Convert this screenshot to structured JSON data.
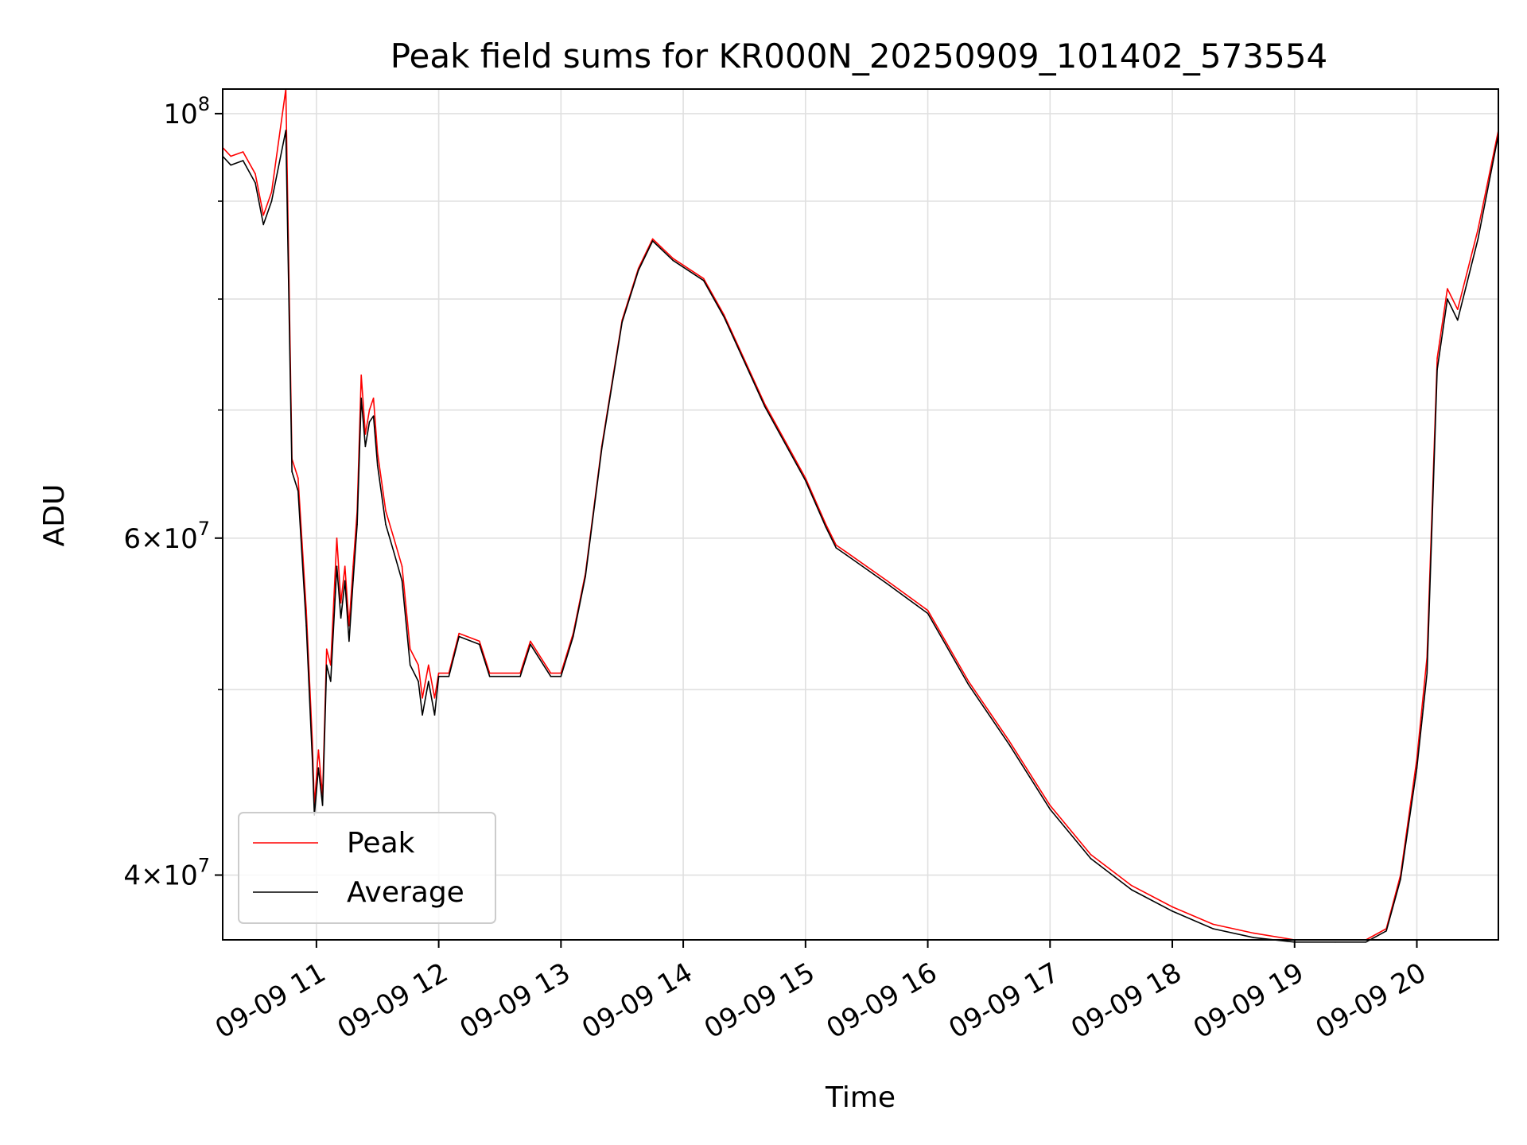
{
  "chart_data": {
    "type": "line",
    "title": "Peak field sums for KR000N_20250909_101402_573554",
    "xlabel": "Time",
    "ylabel": "ADU",
    "x_axis": "time (hours of 2025-09-09, local clock)",
    "xlim": [
      "09-09 10:14",
      "09-09 20:40"
    ],
    "ylim": [
      37000000,
      103000000
    ],
    "yscale": "log",
    "grid": true,
    "legend_position": "lower-left",
    "x_ticks": [
      {
        "value": "09-09 11:00",
        "label": "09-09 11"
      },
      {
        "value": "09-09 12:00",
        "label": "09-09 12"
      },
      {
        "value": "09-09 13:00",
        "label": "09-09 13"
      },
      {
        "value": "09-09 14:00",
        "label": "09-09 14"
      },
      {
        "value": "09-09 15:00",
        "label": "09-09 15"
      },
      {
        "value": "09-09 16:00",
        "label": "09-09 16"
      },
      {
        "value": "09-09 17:00",
        "label": "09-09 17"
      },
      {
        "value": "09-09 18:00",
        "label": "09-09 18"
      },
      {
        "value": "09-09 19:00",
        "label": "09-09 19"
      },
      {
        "value": "09-09 20:00",
        "label": "09-09 20"
      }
    ],
    "y_ticks": [
      {
        "value": 40000000,
        "mantissa": "4",
        "exponent": "7"
      },
      {
        "value": 60000000,
        "mantissa": "6",
        "exponent": "7"
      },
      {
        "value": 100000000,
        "mantissa": "",
        "exponent": "8"
      }
    ],
    "y_minor_ticks": [
      50000000,
      70000000,
      80000000,
      90000000
    ],
    "series": [
      {
        "name": "Peak",
        "color": "#ff0000",
        "x": [
          "10:14",
          "10:18",
          "10:24",
          "10:30",
          "10:34",
          "10:38",
          "10:45",
          "10:48",
          "10:51",
          "10:55",
          "10:58",
          "10:59",
          "11:01",
          "11:03",
          "11:05",
          "11:07",
          "11:10",
          "11:12",
          "11:14",
          "11:16",
          "11:18",
          "11:20",
          "11:22",
          "11:24",
          "11:26",
          "11:28",
          "11:30",
          "11:34",
          "11:38",
          "11:42",
          "11:46",
          "11:50",
          "11:52",
          "11:55",
          "11:58",
          "12:00",
          "12:05",
          "12:10",
          "12:20",
          "12:25",
          "12:40",
          "12:45",
          "12:55",
          "13:00",
          "13:06",
          "13:12",
          "13:20",
          "13:30",
          "13:38",
          "13:45",
          "13:55",
          "14:10",
          "14:20",
          "14:40",
          "15:00",
          "15:10",
          "15:15",
          "15:20",
          "15:40",
          "16:00",
          "16:20",
          "16:40",
          "17:00",
          "17:20",
          "17:40",
          "18:00",
          "18:20",
          "18:40",
          "19:00",
          "19:20",
          "19:35",
          "19:45",
          "19:52",
          "20:00",
          "20:05",
          "20:10",
          "20:15",
          "20:20",
          "20:30",
          "20:40"
        ],
        "y": [
          96000000,
          95000000,
          95500000,
          93000000,
          88500000,
          91000000,
          103000000,
          66000000,
          64500000,
          55000000,
          47000000,
          43500000,
          46500000,
          44000000,
          52500000,
          51500000,
          60000000,
          55500000,
          58000000,
          54000000,
          58000000,
          62000000,
          73000000,
          68000000,
          70000000,
          71000000,
          66500000,
          62000000,
          60000000,
          58000000,
          52500000,
          51500000,
          49500000,
          51500000,
          49500000,
          51000000,
          51000000,
          53500000,
          53000000,
          51000000,
          51000000,
          53000000,
          51000000,
          51000000,
          53500000,
          57500000,
          67000000,
          78000000,
          83000000,
          86000000,
          84000000,
          82000000,
          78500000,
          70500000,
          64500000,
          61000000,
          59500000,
          59000000,
          57000000,
          55000000,
          50500000,
          47000000,
          43500000,
          41000000,
          39500000,
          38500000,
          37700000,
          37300000,
          37000000,
          37000000,
          37000000,
          37500000,
          40000000,
          46000000,
          52000000,
          74500000,
          81000000,
          79000000,
          87000000,
          98000000
        ]
      },
      {
        "name": "Average",
        "color": "#000000",
        "x": [
          "10:14",
          "10:18",
          "10:24",
          "10:30",
          "10:34",
          "10:38",
          "10:45",
          "10:48",
          "10:51",
          "10:55",
          "10:58",
          "10:59",
          "11:01",
          "11:03",
          "11:05",
          "11:07",
          "11:10",
          "11:12",
          "11:14",
          "11:16",
          "11:18",
          "11:20",
          "11:22",
          "11:24",
          "11:26",
          "11:28",
          "11:30",
          "11:34",
          "11:38",
          "11:42",
          "11:46",
          "11:50",
          "11:52",
          "11:55",
          "11:58",
          "12:00",
          "12:05",
          "12:10",
          "12:20",
          "12:25",
          "12:40",
          "12:45",
          "12:55",
          "13:00",
          "13:06",
          "13:12",
          "13:20",
          "13:30",
          "13:38",
          "13:45",
          "13:55",
          "14:10",
          "14:20",
          "14:40",
          "15:00",
          "15:10",
          "15:15",
          "15:20",
          "15:40",
          "16:00",
          "16:20",
          "16:40",
          "17:00",
          "17:20",
          "17:40",
          "18:00",
          "18:20",
          "18:40",
          "19:00",
          "19:20",
          "19:35",
          "19:45",
          "19:52",
          "20:00",
          "20:05",
          "20:10",
          "20:15",
          "20:20",
          "20:30",
          "20:40"
        ],
        "y": [
          95000000,
          94000000,
          94500000,
          92000000,
          87500000,
          90000000,
          98000000,
          65000000,
          63500000,
          54000000,
          46000000,
          43000000,
          45500000,
          43500000,
          51500000,
          50500000,
          58000000,
          54500000,
          57000000,
          53000000,
          57000000,
          61000000,
          71000000,
          67000000,
          69000000,
          69500000,
          65500000,
          61000000,
          59000000,
          57000000,
          51500000,
          50500000,
          48500000,
          50500000,
          48500000,
          50800000,
          50800000,
          53300000,
          52800000,
          50800000,
          50800000,
          52800000,
          50800000,
          50800000,
          53300000,
          57300000,
          66800000,
          77800000,
          82800000,
          85800000,
          83800000,
          81800000,
          78300000,
          70300000,
          64300000,
          60800000,
          59300000,
          58800000,
          56800000,
          54800000,
          50300000,
          46800000,
          43300000,
          40800000,
          39300000,
          38300000,
          37500000,
          37100000,
          36900000,
          36900000,
          36900000,
          37400000,
          39800000,
          45500000,
          51000000,
          73500000,
          80000000,
          78000000,
          86000000,
          97500000
        ]
      }
    ]
  }
}
